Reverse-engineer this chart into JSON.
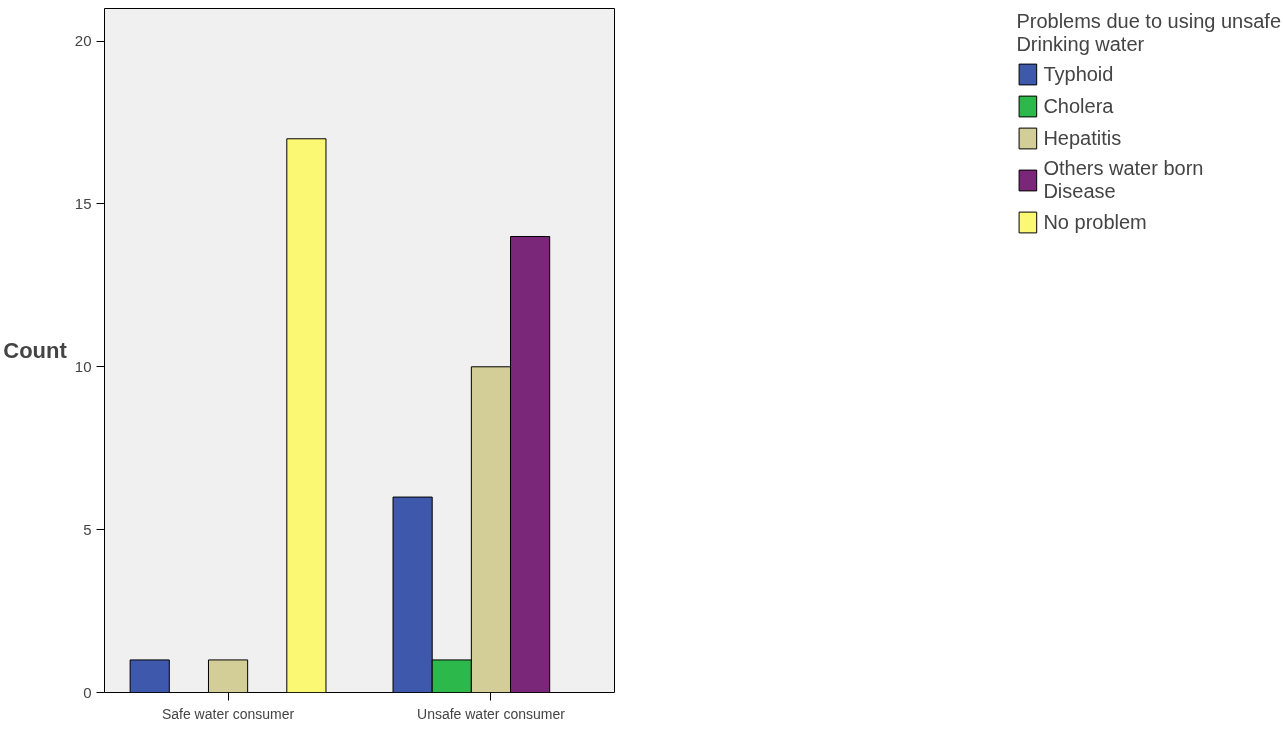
{
  "chart_data": {
    "type": "bar",
    "ylabel": "Count",
    "legend_title": "Problems due to using unsafe Drinking water",
    "categories": [
      "Safe water consumer",
      "Unsafe water consumer"
    ],
    "series": [
      {
        "name": "Typhoid",
        "color": "#3e58ac",
        "values": [
          1,
          6
        ]
      },
      {
        "name": "Cholera",
        "color": "#2db84c",
        "values": [
          null,
          1
        ]
      },
      {
        "name": "Hepatitis",
        "color": "#d3ce97",
        "values": [
          1,
          10
        ]
      },
      {
        "name": "Others water born Disease",
        "color": "#7b2779",
        "values": [
          null,
          14
        ]
      },
      {
        "name": "No problem",
        "color": "#fbf873",
        "values": [
          17,
          null
        ]
      }
    ],
    "ylim": [
      0,
      21
    ],
    "yticks": [
      0,
      5,
      10,
      15,
      20
    ],
    "grid": false,
    "legend": "right"
  }
}
